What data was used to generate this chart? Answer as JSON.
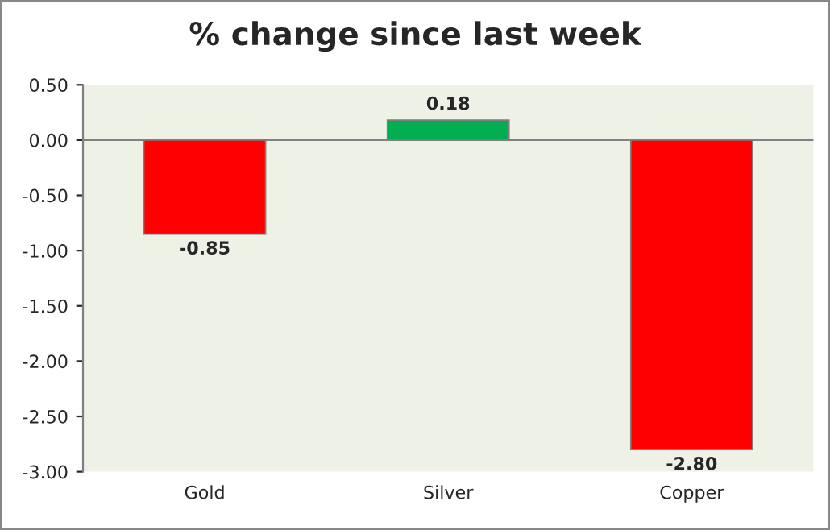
{
  "chart_data": {
    "type": "bar",
    "title": "% change since last week",
    "categories": [
      "Gold",
      "Silver",
      "Copper"
    ],
    "values": [
      -0.85,
      0.18,
      -2.8
    ],
    "colors": [
      "#ff0000",
      "#00b050",
      "#ff0000"
    ],
    "value_labels": [
      "-0.85",
      "0.18",
      "-2.80"
    ],
    "ylim": [
      -3.0,
      0.5
    ],
    "yticks": [
      {
        "value": 0.5,
        "label": "0.50"
      },
      {
        "value": 0,
        "label": "0.00"
      },
      {
        "value": -0.5,
        "label": "-0.50"
      },
      {
        "value": -1.0,
        "label": "-1.00"
      },
      {
        "value": -1.5,
        "label": "-1.50"
      },
      {
        "value": -2.0,
        "label": "-2.00"
      },
      {
        "value": -2.5,
        "label": "-2.50"
      },
      {
        "value": -3.0,
        "label": "-3.00"
      }
    ],
    "ref_lines": [
      {
        "axis": "y",
        "value": 0,
        "color": "#808080"
      }
    ],
    "grid": false,
    "legend": false
  }
}
